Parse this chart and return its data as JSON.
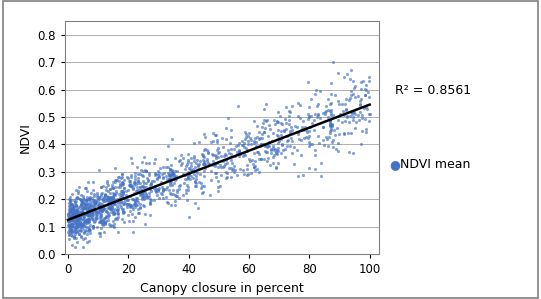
{
  "title": "",
  "xlabel": "Canopy closure in percent",
  "ylabel": "NDVI",
  "xlim": [
    -1,
    103
  ],
  "ylim": [
    0,
    0.85
  ],
  "xticks": [
    0,
    20,
    40,
    60,
    80,
    100
  ],
  "yticks": [
    0,
    0.1,
    0.2,
    0.3,
    0.4,
    0.5,
    0.6,
    0.7,
    0.8
  ],
  "scatter_color": "#4472C4",
  "scatter_alpha": 0.65,
  "scatter_size": 5,
  "line_color": "black",
  "line_x0": 0,
  "line_y0": 0.125,
  "line_x1": 100,
  "line_y1": 0.545,
  "r2_text": "R² = 0.8561",
  "legend_label": "NDVI mean",
  "n_points": 1500,
  "random_seed": 42,
  "background_color": "#ffffff",
  "grid_color": "#b0b0b0",
  "border_color": "#808080"
}
